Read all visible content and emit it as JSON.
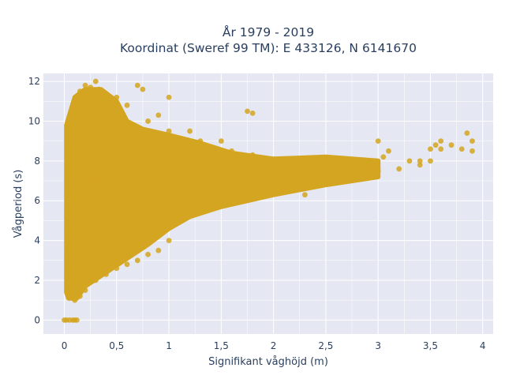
{
  "title_line1": "År 1979 - 2019",
  "title_line2": "Koordinat (Sweref 99 TM): E 433126, N 6141670",
  "chart_data": {
    "type": "scatter",
    "xlabel": "Signifikant våghöjd (m)",
    "ylabel": "Vågperiod (s)",
    "xlim": [
      -0.2,
      4.1
    ],
    "ylim": [
      -0.7,
      12.4
    ],
    "x_ticks": [
      0,
      0.5,
      1,
      1.5,
      2,
      2.5,
      3,
      3.5,
      4
    ],
    "x_tick_labels": [
      "0",
      "0,5",
      "1",
      "1,5",
      "2",
      "2,5",
      "3",
      "3,5",
      "4"
    ],
    "y_ticks": [
      0,
      2,
      4,
      6,
      8,
      10,
      12
    ],
    "y_tick_labels": [
      "0",
      "2",
      "4",
      "6",
      "8",
      "10",
      "12"
    ],
    "grid": true,
    "background": "#e5e8f2",
    "marker_color": "#d4a520",
    "points": [
      [
        0.0,
        0.0
      ],
      [
        0.02,
        0.0
      ],
      [
        0.05,
        0.0
      ],
      [
        0.08,
        0.0
      ],
      [
        0.1,
        0.0
      ],
      [
        0.12,
        0.0
      ],
      [
        0.03,
        1.4
      ],
      [
        0.05,
        2.5
      ],
      [
        0.05,
        3.5
      ],
      [
        0.06,
        4.5
      ],
      [
        0.07,
        5.5
      ],
      [
        0.07,
        6.5
      ],
      [
        0.08,
        7.5
      ],
      [
        0.08,
        8.5
      ],
      [
        0.09,
        9.5
      ],
      [
        0.1,
        1.0
      ],
      [
        0.15,
        1.2
      ],
      [
        0.2,
        1.5
      ],
      [
        0.15,
        11.5
      ],
      [
        0.2,
        11.8
      ],
      [
        0.25,
        11.7
      ],
      [
        0.3,
        12.0
      ],
      [
        0.33,
        11.6
      ],
      [
        0.3,
        2.0
      ],
      [
        0.4,
        2.3
      ],
      [
        0.5,
        2.6
      ],
      [
        0.6,
        2.8
      ],
      [
        0.7,
        3.0
      ],
      [
        0.8,
        3.3
      ],
      [
        0.9,
        3.5
      ],
      [
        1.0,
        4.0
      ],
      [
        0.5,
        11.2
      ],
      [
        0.6,
        10.8
      ],
      [
        0.7,
        11.8
      ],
      [
        0.75,
        11.6
      ],
      [
        0.8,
        10.0
      ],
      [
        0.9,
        10.3
      ],
      [
        1.0,
        11.2
      ],
      [
        1.0,
        9.5
      ],
      [
        0.3,
        5.0
      ],
      [
        0.3,
        7.0
      ],
      [
        0.4,
        6.0
      ],
      [
        0.5,
        5.5
      ],
      [
        0.5,
        7.5
      ],
      [
        0.6,
        6.5
      ],
      [
        0.7,
        5.0
      ],
      [
        0.8,
        7.0
      ],
      [
        1.1,
        5.5
      ],
      [
        1.2,
        8.0
      ],
      [
        1.3,
        6.0
      ],
      [
        1.4,
        7.5
      ],
      [
        1.5,
        6.5
      ],
      [
        1.6,
        8.0
      ],
      [
        1.7,
        6.5
      ],
      [
        1.8,
        7.0
      ],
      [
        1.2,
        9.5
      ],
      [
        1.3,
        9.0
      ],
      [
        1.5,
        9.0
      ],
      [
        1.6,
        8.5
      ],
      [
        1.75,
        10.5
      ],
      [
        1.8,
        10.4
      ],
      [
        1.8,
        8.3
      ],
      [
        2.0,
        7.0
      ],
      [
        2.1,
        6.5
      ],
      [
        2.2,
        7.5
      ],
      [
        2.3,
        6.3
      ],
      [
        2.4,
        7.0
      ],
      [
        2.5,
        7.8
      ],
      [
        2.6,
        7.2
      ],
      [
        2.7,
        7.9
      ],
      [
        2.8,
        7.5
      ],
      [
        2.9,
        8.0
      ],
      [
        3.0,
        7.5
      ],
      [
        3.0,
        9.0
      ],
      [
        3.05,
        8.2
      ],
      [
        3.1,
        8.5
      ],
      [
        3.2,
        7.6
      ],
      [
        3.3,
        8.0
      ],
      [
        3.4,
        8.0
      ],
      [
        3.5,
        8.6
      ],
      [
        3.55,
        8.8
      ],
      [
        3.6,
        8.6
      ],
      [
        3.6,
        9.0
      ],
      [
        3.7,
        8.8
      ],
      [
        3.8,
        8.6
      ],
      [
        3.85,
        9.4
      ],
      [
        3.9,
        9.0
      ],
      [
        3.9,
        8.5
      ],
      [
        3.4,
        7.8
      ],
      [
        3.5,
        8.0
      ]
    ]
  }
}
